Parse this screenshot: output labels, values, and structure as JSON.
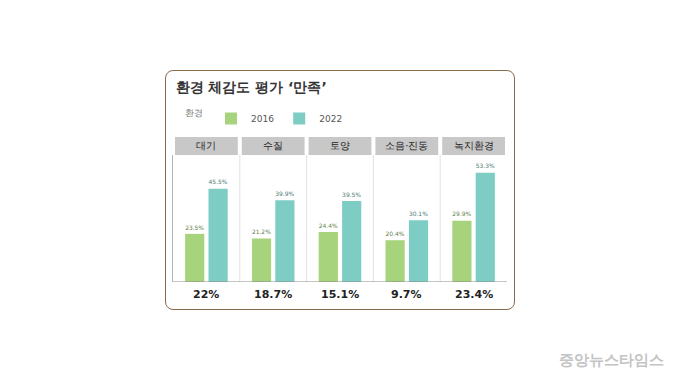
{
  "chart_data": {
    "type": "bar",
    "title": "환경 체감도 평가 ‘만족’",
    "legend_title": "환경",
    "categories": [
      "대기",
      "수질",
      "토양",
      "소음·진동",
      "녹지환경"
    ],
    "series": [
      {
        "name": "2016",
        "color": "#a7d37d",
        "values": [
          23.5,
          21.2,
          24.4,
          20.4,
          29.9
        ],
        "value_labels": [
          "23.5%",
          "21.2%",
          "24.4%",
          "20.4%",
          "29.9%"
        ]
      },
      {
        "name": "2022",
        "color": "#7ecdc4",
        "values": [
          45.5,
          39.9,
          39.5,
          30.1,
          53.3
        ],
        "value_labels": [
          "45.5%",
          "39.9%",
          "39.5%",
          "30.1%",
          "53.3%"
        ]
      }
    ],
    "differences": {
      "values": [
        22,
        18.7,
        15.1,
        9.7,
        23.4
      ],
      "value_labels": [
        "22%",
        "18.7%",
        "15.1%",
        "9.7%",
        "23.4%"
      ]
    },
    "ylim": [
      0,
      62
    ],
    "grid": false,
    "legend": "top-left",
    "data_labels": true,
    "tick_labels": "x",
    "annotations": [
      {
        "text": "중앙뉴스타임스"
      }
    ]
  }
}
